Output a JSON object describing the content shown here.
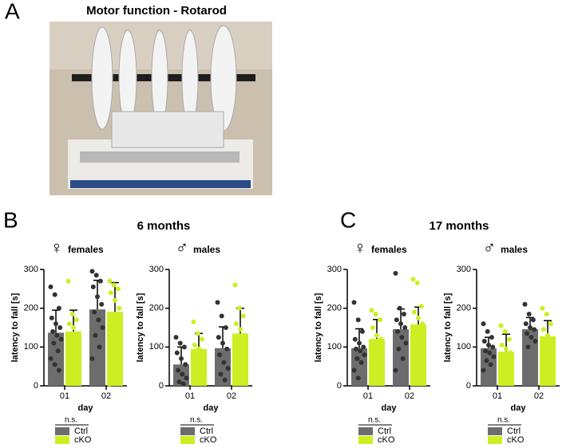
{
  "panel_a": {
    "label": "A",
    "title": "Motor function - Rotarod"
  },
  "panel_b": {
    "label": "B",
    "title": "6 months"
  },
  "panel_c": {
    "label": "C",
    "title": "17 months"
  },
  "chart_data": [
    {
      "type": "bar",
      "symbol": "♀",
      "title": "females",
      "y_label": "latency to fall [s]",
      "x_label": "day",
      "significance": "n.s.",
      "categories": [
        "01",
        "02"
      ],
      "ylim": [
        0,
        300
      ],
      "yticks": [
        0,
        100,
        200,
        300
      ],
      "series": [
        {
          "name": "Ctrl",
          "color": "#6d6d6d",
          "values": [
            137,
            197
          ],
          "errors": [
            58,
            75
          ],
          "points": [
            [
              255,
              235,
              200,
              175,
              160,
              150,
              140,
              130,
              120,
              110,
              90,
              70,
              55,
              40
            ],
            [
              295,
              285,
              270,
              255,
              230,
              210,
              190,
              170,
              150,
              130,
              100,
              70
            ]
          ]
        },
        {
          "name": "cKO",
          "color": "#cdee22",
          "values": [
            140,
            191
          ],
          "errors": [
            55,
            75
          ],
          "points": [
            [
              270,
              185,
              170,
              160,
              150,
              135,
              120,
              105,
              90,
              75,
              60,
              45
            ],
            [
              270,
              260,
              250,
              240,
              220,
              200,
              180,
              160,
              130,
              100,
              60,
              5
            ]
          ]
        }
      ]
    },
    {
      "type": "bar",
      "symbol": "♂",
      "title": "males",
      "y_label": "latency to fall [s]",
      "x_label": "day",
      "significance": "n.s.",
      "categories": [
        "01",
        "02"
      ],
      "ylim": [
        0,
        300
      ],
      "yticks": [
        0,
        100,
        200,
        300
      ],
      "series": [
        {
          "name": "Ctrl",
          "color": "#6d6d6d",
          "values": [
            55,
            97
          ],
          "errors": [
            45,
            55
          ],
          "points": [
            [
              125,
              110,
              100,
              85,
              70,
              55,
              40,
              30,
              20,
              10,
              5
            ],
            [
              215,
              180,
              150,
              125,
              110,
              95,
              80,
              60,
              45,
              30,
              15
            ]
          ]
        },
        {
          "name": "cKO",
          "color": "#cdee22",
          "values": [
            95,
            135
          ],
          "errors": [
            40,
            65
          ],
          "points": [
            [
              165,
              135,
              120,
              105,
              95,
              80,
              60,
              40,
              20,
              10
            ],
            [
              260,
              200,
              180,
              160,
              145,
              130,
              110,
              90,
              60,
              30,
              15
            ]
          ]
        }
      ]
    },
    {
      "type": "bar",
      "symbol": "♀",
      "title": "females",
      "y_label": "latency to fall [s]",
      "x_label": "day",
      "significance": "n.s.",
      "categories": [
        "01",
        "02"
      ],
      "ylim": [
        0,
        300
      ],
      "yticks": [
        0,
        100,
        200,
        300
      ],
      "series": [
        {
          "name": "Ctrl",
          "color": "#6d6d6d",
          "values": [
            97,
            146
          ],
          "errors": [
            50,
            52
          ],
          "points": [
            [
              215,
              170,
              140,
              120,
              110,
              100,
              95,
              90,
              80,
              70,
              60,
              40,
              20
            ],
            [
              290,
              200,
              185,
              170,
              160,
              150,
              140,
              125,
              110,
              95,
              70,
              40
            ]
          ]
        },
        {
          "name": "cKO",
          "color": "#cdee22",
          "values": [
            121,
            158
          ],
          "errors": [
            50,
            45
          ],
          "points": [
            [
              195,
              185,
              170,
              150,
              130,
              120,
              110,
              100,
              90,
              80,
              60,
              40
            ],
            [
              275,
              265,
              205,
              190,
              175,
              160,
              150,
              140,
              130,
              120,
              100,
              80
            ]
          ]
        }
      ]
    },
    {
      "type": "bar",
      "symbol": "♂",
      "title": "males",
      "y_label": "latency to fall [s]",
      "x_label": "day",
      "significance": "n.s.",
      "categories": [
        "01",
        "02"
      ],
      "ylim": [
        0,
        300
      ],
      "yticks": [
        0,
        100,
        200,
        300
      ],
      "series": [
        {
          "name": "Ctrl",
          "color": "#6d6d6d",
          "values": [
            97,
            146
          ],
          "errors": [
            28,
            30
          ],
          "points": [
            [
              160,
              140,
              125,
              115,
              105,
              100,
              90,
              85,
              75,
              65,
              55,
              40
            ],
            [
              210,
              185,
              170,
              160,
              150,
              145,
              135,
              125,
              115,
              100
            ]
          ]
        },
        {
          "name": "cKO",
          "color": "#cdee22",
          "values": [
            88,
            128
          ],
          "errors": [
            45,
            40
          ],
          "points": [
            [
              155,
              140,
              120,
              105,
              95,
              85,
              70,
              60,
              45,
              30
            ],
            [
              200,
              185,
              160,
              145,
              130,
              120,
              110,
              95,
              80,
              60
            ]
          ]
        }
      ]
    }
  ]
}
